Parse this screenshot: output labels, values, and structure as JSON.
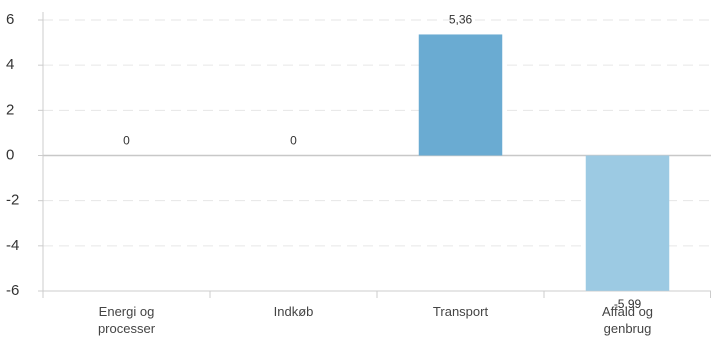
{
  "chart_data": {
    "type": "bar",
    "categories": [
      "Energi og processer",
      "Indkøb",
      "Transport",
      "Affald og genbrug"
    ],
    "values": [
      0,
      0,
      5.36,
      -5.99
    ],
    "value_labels": [
      "0",
      "0",
      "5,36",
      "-5,99"
    ],
    "colors": [
      "#6aabd2",
      "#6aabd2",
      "#6aabd2",
      "#9ccae3"
    ],
    "ylim": [
      -6,
      6
    ],
    "yticks": [
      -6,
      -4,
      -2,
      0,
      2,
      4,
      6
    ],
    "grid": true
  }
}
